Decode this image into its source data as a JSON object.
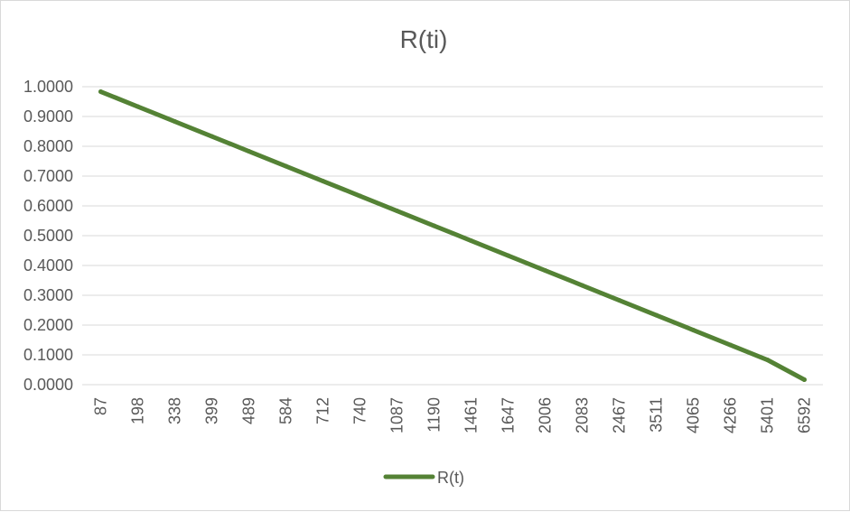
{
  "chart_data": {
    "type": "line",
    "title": "R(ti)",
    "xlabel": "",
    "ylabel": "",
    "ylim": [
      0,
      1
    ],
    "ytick_labels": [
      "0.0000",
      "0.1000",
      "0.2000",
      "0.3000",
      "0.4000",
      "0.5000",
      "0.6000",
      "0.7000",
      "0.8000",
      "0.9000",
      "1.0000"
    ],
    "categories": [
      "87",
      "198",
      "338",
      "399",
      "489",
      "584",
      "712",
      "740",
      "1087",
      "1190",
      "1461",
      "1647",
      "2006",
      "2083",
      "2467",
      "3511",
      "4065",
      "4266",
      "5401",
      "6592"
    ],
    "grid": true,
    "legend_position": "bottom",
    "colors": {
      "series": "#548235",
      "grid": "#d9d9d9",
      "text": "#595959"
    },
    "series": [
      {
        "name": "R(t)",
        "values": [
          0.9833,
          0.9333,
          0.8833,
          0.8333,
          0.7833,
          0.7333,
          0.6833,
          0.6333,
          0.5833,
          0.5333,
          0.4833,
          0.4333,
          0.3833,
          0.3333,
          0.2833,
          0.2333,
          0.1833,
          0.1333,
          0.0833,
          0.0167
        ]
      }
    ]
  }
}
